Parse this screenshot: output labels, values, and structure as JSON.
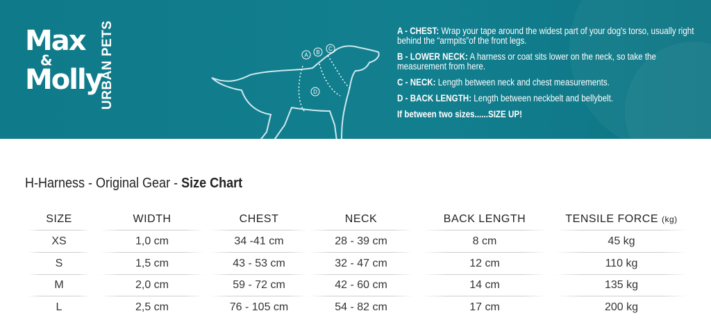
{
  "brand": {
    "logo_text": "Max & Molly",
    "sub": "URBAN PETS"
  },
  "colors": {
    "banner": "#0f7a89",
    "text": "#333333"
  },
  "diagram": {
    "labels": [
      "A",
      "B",
      "C",
      "D"
    ]
  },
  "instructions": [
    {
      "key": "A - CHEST:",
      "text": "Wrap your tape around the widest part of your dog's torso, usually right behind the “armpits”of the front legs."
    },
    {
      "key": "B - LOWER NECK:",
      "text": "A harness or coat sits lower on the neck, so take the measurement from here."
    },
    {
      "key": "C - NECK:",
      "text": "Length between neck and chest measurements."
    },
    {
      "key": "D - BACK LENGTH:",
      "text": "Length between neckbelt and bellybelt."
    }
  ],
  "tip": "If between two sizes......SIZE UP!",
  "title": {
    "part1": "H-Harness - ",
    "part2": "Original Gear - ",
    "part3": "Size Chart"
  },
  "table": {
    "headers": [
      "SIZE",
      "WIDTH",
      "CHEST",
      "NECK",
      "BACK LENGTH",
      "TENSILE FORCE"
    ],
    "header_unit": "(kg)",
    "rows": [
      [
        "XS",
        "1,0 cm",
        "34 -41 cm",
        "28 - 39 cm",
        "8 cm",
        "45 kg"
      ],
      [
        "S",
        "1,5 cm",
        "43 - 53 cm",
        "32 - 47 cm",
        "12 cm",
        "110 kg"
      ],
      [
        "M",
        "2,0 cm",
        "59 - 72 cm",
        "42 - 60 cm",
        "14 cm",
        "135 kg"
      ],
      [
        "L",
        "2,5 cm",
        "76 - 105 cm",
        "54 - 82 cm",
        "17 cm",
        "200 kg"
      ]
    ]
  }
}
